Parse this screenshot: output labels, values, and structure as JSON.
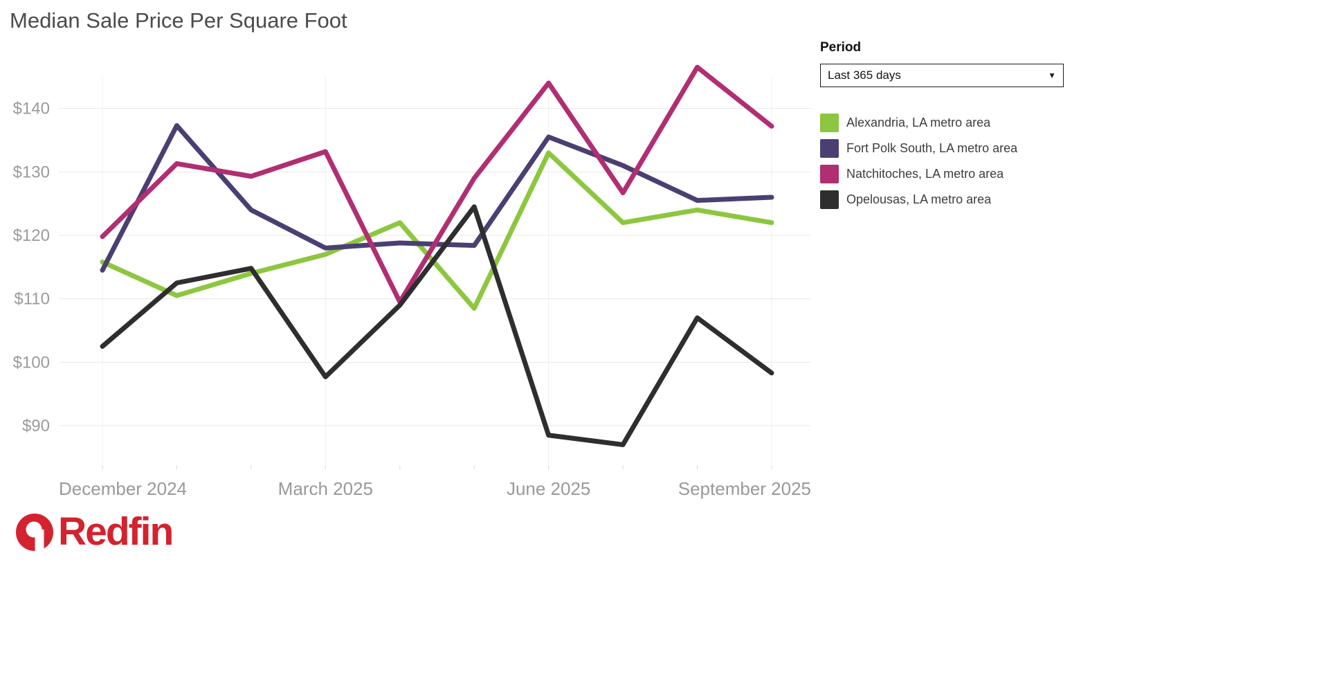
{
  "panel": {
    "period_label": "Period",
    "period_value": "Last 365 days",
    "dropdown_caret": "▼"
  },
  "logo": {
    "text": "Redfin",
    "color": "#d2232e",
    "icon": "redfin-circle-door-icon"
  },
  "chart_data": {
    "type": "line",
    "title": "Median Sale Price Per Square Foot",
    "x": [
      "Dec 2024",
      "Jan 2025",
      "Feb 2025",
      "Mar 2025",
      "Apr 2025",
      "May 2025",
      "Jun 2025",
      "Jul 2025",
      "Aug 2025",
      "Sep 2025"
    ],
    "x_tick_labels": [
      {
        "index": 0,
        "label": "December 2024"
      },
      {
        "index": 3,
        "label": "March 2025"
      },
      {
        "index": 6,
        "label": "June 2025"
      },
      {
        "index": 9,
        "label": "September 2025"
      }
    ],
    "y_ticks": [
      90,
      100,
      110,
      120,
      130,
      140
    ],
    "y_tick_prefix": "$",
    "ylim": [
      84,
      150
    ],
    "grid": true,
    "legend_position": "right",
    "series": [
      {
        "name": "Alexandria, LA metro area",
        "color": "#8dc63f",
        "values": [
          115.8,
          110.5,
          114.0,
          117.0,
          122.0,
          108.5,
          133.0,
          122.0,
          124.0,
          122.0
        ]
      },
      {
        "name": "Fort Polk South, LA metro area",
        "color": "#4b3f72",
        "values": [
          114.5,
          137.3,
          124.0,
          118.0,
          118.8,
          118.4,
          135.5,
          131.0,
          125.5,
          126.0
        ]
      },
      {
        "name": "Natchitoches, LA metro area",
        "color": "#b02e72",
        "values": [
          119.8,
          131.3,
          129.3,
          133.2,
          109.5,
          129.0,
          144.0,
          126.7,
          146.5,
          137.2
        ]
      },
      {
        "name": "Opelousas, LA metro area",
        "color": "#2e2e2e",
        "values": [
          102.5,
          112.5,
          114.8,
          97.7,
          109.0,
          124.5,
          88.5,
          87.0,
          107.0,
          98.3
        ]
      }
    ]
  }
}
